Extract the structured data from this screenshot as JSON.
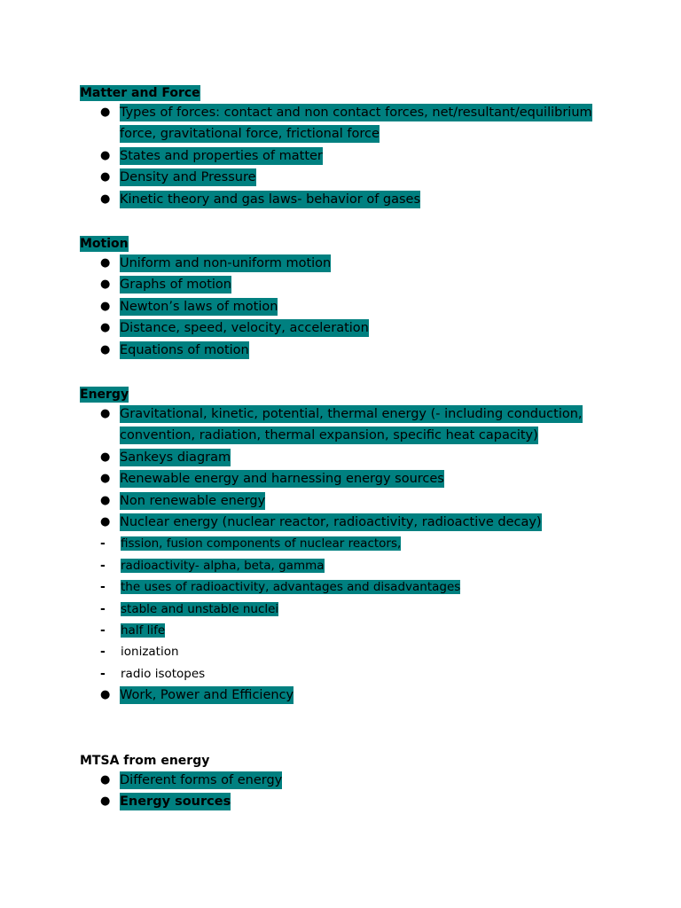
{
  "sections": [
    {
      "heading": "Matter and Force",
      "heading_highlighted": true,
      "items": [
        {
          "text": "Types of forces: contact and non contact forces, net/resultant/equilibrium force, gravitational force, frictional force",
          "highlighted": true
        },
        {
          "text": "States and properties of matter",
          "highlighted": true
        },
        {
          "text": "Density and Pressure",
          "highlighted": true
        },
        {
          "text": "Kinetic theory and gas laws- behavior of gases",
          "highlighted": true
        }
      ]
    },
    {
      "heading": "Motion",
      "heading_highlighted": true,
      "items": [
        {
          "text": "Uniform and non-uniform motion",
          "highlighted": true
        },
        {
          "text": "Graphs of motion",
          "highlighted": true
        },
        {
          "text": "Newton’s laws of motion",
          "highlighted": true
        },
        {
          "text": "Distance, speed, velocity, acceleration",
          "highlighted": true
        },
        {
          "text": "Equations of motion",
          "highlighted": true
        }
      ]
    },
    {
      "heading": "Energy",
      "heading_highlighted": true,
      "items": [
        {
          "text": "Gravitational, kinetic, potential, thermal energy (- including conduction, convention, radiation, thermal expansion, specific heat capacity)",
          "highlighted": true
        },
        {
          "text": "Sankeys diagram",
          "highlighted": true
        },
        {
          "text": "Renewable energy and harnessing energy sources",
          "highlighted": true
        },
        {
          "text": "Non renewable energy",
          "highlighted": true
        },
        {
          "text": "Nuclear energy (nuclear reactor, radioactivity, radioactive decay)",
          "highlighted": true
        },
        {
          "text": "Work, Power and Efficiency",
          "highlighted": true
        }
      ],
      "subitems": [
        {
          "text": "fission, fusion components of nuclear reactors,",
          "highlighted": true
        },
        {
          "text": "radioactivity- alpha, beta, gamma",
          "highlighted": true
        },
        {
          "text": "the uses of radioactivity, advantages and disadvantages",
          "highlighted": true
        },
        {
          "text": "stable and unstable nuclei",
          "highlighted": true
        },
        {
          "text": "half life",
          "highlighted": true
        },
        {
          "text": "ionization",
          "highlighted": false
        },
        {
          "text": "radio isotopes",
          "highlighted": false
        }
      ]
    },
    {
      "heading": "MTSA from energy",
      "heading_highlighted": false,
      "items": [
        {
          "text": "Different forms of energy",
          "highlighted": true
        },
        {
          "text": "Energy sources",
          "highlighted": true,
          "bold": true
        }
      ]
    }
  ],
  "symbols": {
    "bullet": "●",
    "dash": "-"
  },
  "colors": {
    "highlight": "#008080"
  }
}
